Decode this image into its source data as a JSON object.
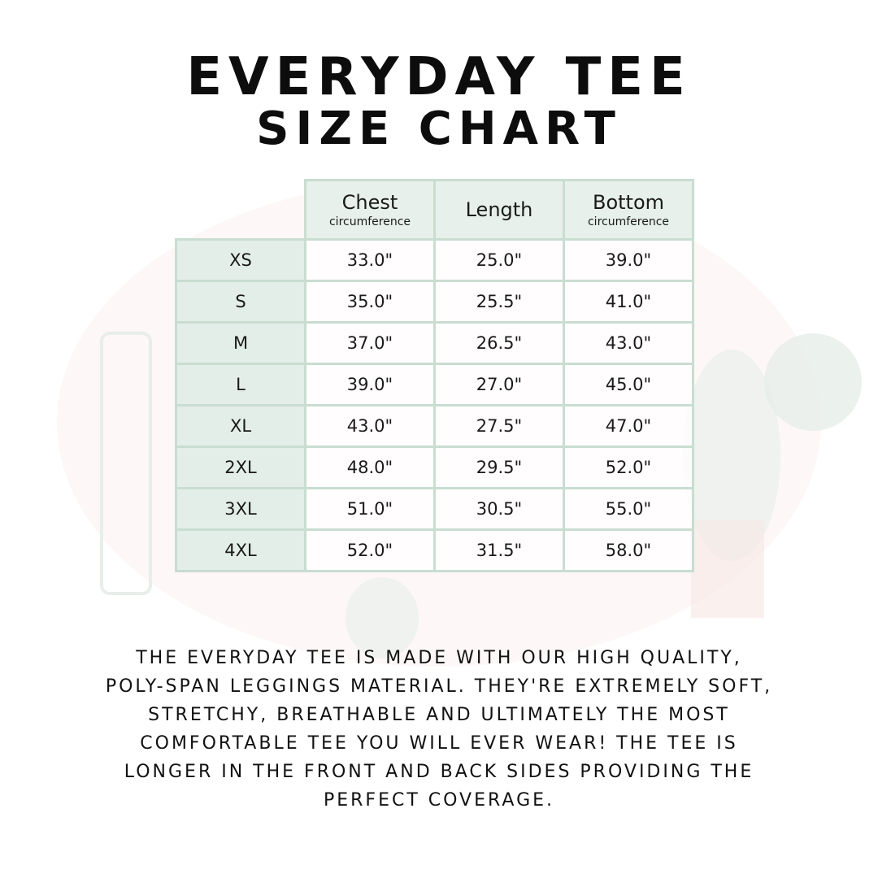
{
  "title": {
    "line1": "EVERYDAY TEE",
    "line2": "SIZE CHART"
  },
  "table": {
    "headers": [
      {
        "label": "Chest",
        "sub": "circumference"
      },
      {
        "label": "Length",
        "sub": ""
      },
      {
        "label": "Bottom",
        "sub": "circumference"
      }
    ],
    "rows": [
      {
        "size": "XS",
        "chest": "33.0\"",
        "length": "25.0\"",
        "bottom": "39.0\""
      },
      {
        "size": "S",
        "chest": "35.0\"",
        "length": "25.5\"",
        "bottom": "41.0\""
      },
      {
        "size": "M",
        "chest": "37.0\"",
        "length": "26.5\"",
        "bottom": "43.0\""
      },
      {
        "size": "L",
        "chest": "39.0\"",
        "length": "27.0\"",
        "bottom": "45.0\""
      },
      {
        "size": "XL",
        "chest": "43.0\"",
        "length": "27.5\"",
        "bottom": "47.0\""
      },
      {
        "size": "2XL",
        "chest": "48.0\"",
        "length": "29.5\"",
        "bottom": "52.0\""
      },
      {
        "size": "3XL",
        "chest": "51.0\"",
        "length": "30.5\"",
        "bottom": "55.0\""
      },
      {
        "size": "4XL",
        "chest": "52.0\"",
        "length": "31.5\"",
        "bottom": "58.0\""
      }
    ]
  },
  "description": [
    "The Everyday Tee is made with our high quality,",
    "poly-span leggings material. They're extremely soft,",
    "stretchy, breathable and ultimately the most",
    "comfortable tee you will ever wear! The tee is",
    "longer in the front and back sides providing the",
    "perfect coverage."
  ],
  "colors": {
    "header_bg": "#e6efe9",
    "border": "#c9ddd1",
    "text": "#111111",
    "background_art": "cactus watercolor"
  }
}
